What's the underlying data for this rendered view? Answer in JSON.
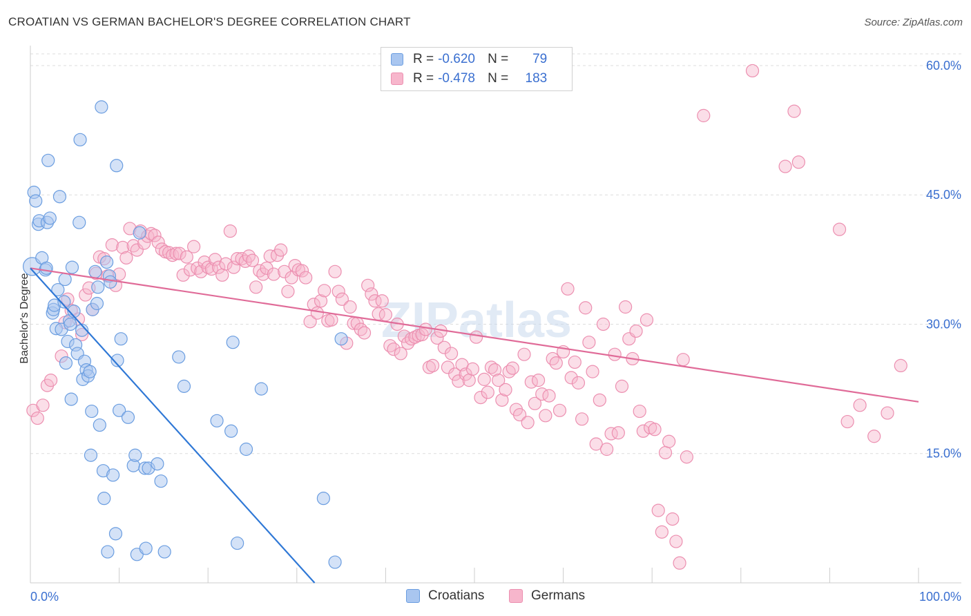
{
  "title": "CROATIAN VS GERMAN BACHELOR'S DEGREE CORRELATION CHART",
  "source": "Source: ZipAtlas.com",
  "watermark": "ZIPatlas",
  "legend": {
    "rows": [
      {
        "r_label": "R =",
        "r_value": "-0.620",
        "n_label": "N =",
        "n_value": "79"
      },
      {
        "r_label": "R =",
        "r_value": "-0.478",
        "n_label": "N =",
        "n_value": "183"
      }
    ]
  },
  "chart_data": {
    "type": "scatter",
    "title": "CROATIAN VS GERMAN BACHELOR'S DEGREE CORRELATION CHART",
    "xlabel": "",
    "ylabel": "Bachelor's Degree",
    "xlim": [
      0,
      100
    ],
    "ylim": [
      0,
      62
    ],
    "x_tick_labels": [
      "0.0%",
      "100.0%"
    ],
    "y_ticks": [
      15,
      30,
      45,
      60
    ],
    "y_tick_labels": [
      "15.0%",
      "30.0%",
      "45.0%",
      "60.0%"
    ],
    "grid": true,
    "colors": {
      "croatians_fill": "#a9c6f0",
      "croatians_stroke": "#6a9de0",
      "croatians_line": "#2f78d6",
      "germans_fill": "#f7b6cc",
      "germans_stroke": "#ec8fb0",
      "germans_line": "#e06b98"
    },
    "series": [
      {
        "name": "Croatians",
        "r": -0.62,
        "n": 79,
        "trend": {
          "x": [
            0,
            32
          ],
          "y": [
            36.5,
            0
          ]
        },
        "points": [
          [
            0.2,
            36.7
          ],
          [
            0.4,
            45.3
          ],
          [
            0.6,
            44.3
          ],
          [
            0.9,
            41.6
          ],
          [
            1.0,
            42.0
          ],
          [
            1.3,
            37.7
          ],
          [
            1.7,
            36.3
          ],
          [
            1.8,
            36.5
          ],
          [
            1.9,
            41.8
          ],
          [
            2.0,
            49.0
          ],
          [
            2.2,
            42.3
          ],
          [
            2.5,
            31.3
          ],
          [
            2.6,
            31.7
          ],
          [
            2.7,
            32.2
          ],
          [
            2.9,
            29.5
          ],
          [
            3.1,
            34.0
          ],
          [
            3.3,
            44.8
          ],
          [
            3.5,
            29.4
          ],
          [
            3.8,
            32.6
          ],
          [
            3.9,
            35.2
          ],
          [
            4.0,
            25.5
          ],
          [
            4.2,
            28.0
          ],
          [
            4.4,
            30.4
          ],
          [
            4.5,
            30.0
          ],
          [
            4.6,
            21.3
          ],
          [
            4.7,
            36.6
          ],
          [
            4.9,
            31.5
          ],
          [
            5.1,
            27.6
          ],
          [
            5.3,
            26.6
          ],
          [
            5.5,
            41.8
          ],
          [
            5.6,
            51.4
          ],
          [
            5.8,
            29.3
          ],
          [
            5.9,
            23.6
          ],
          [
            6.1,
            25.7
          ],
          [
            6.3,
            24.7
          ],
          [
            6.5,
            24.0
          ],
          [
            6.7,
            24.5
          ],
          [
            6.8,
            14.8
          ],
          [
            6.9,
            19.9
          ],
          [
            7.0,
            31.7
          ],
          [
            7.3,
            36.1
          ],
          [
            7.5,
            32.4
          ],
          [
            7.6,
            34.3
          ],
          [
            7.8,
            18.3
          ],
          [
            8.0,
            55.2
          ],
          [
            8.2,
            13.0
          ],
          [
            8.3,
            9.8
          ],
          [
            8.6,
            37.2
          ],
          [
            8.7,
            3.6
          ],
          [
            8.9,
            35.6
          ],
          [
            9.0,
            34.9
          ],
          [
            9.3,
            12.5
          ],
          [
            9.6,
            5.7
          ],
          [
            9.7,
            48.4
          ],
          [
            9.8,
            25.8
          ],
          [
            10.0,
            20.0
          ],
          [
            10.2,
            28.3
          ],
          [
            11.0,
            19.2
          ],
          [
            11.6,
            13.6
          ],
          [
            11.8,
            14.8
          ],
          [
            12.0,
            3.3
          ],
          [
            12.3,
            40.6
          ],
          [
            12.9,
            13.3
          ],
          [
            13.0,
            4.0
          ],
          [
            13.3,
            13.3
          ],
          [
            14.3,
            13.8
          ],
          [
            14.7,
            11.8
          ],
          [
            15.1,
            3.6
          ],
          [
            16.7,
            26.2
          ],
          [
            17.3,
            22.8
          ],
          [
            22.6,
            17.6
          ],
          [
            22.8,
            27.9
          ],
          [
            23.3,
            4.6
          ],
          [
            24.3,
            15.5
          ],
          [
            33.0,
            9.8
          ],
          [
            34.3,
            2.4
          ],
          [
            35.0,
            28.3
          ],
          [
            26.0,
            22.5
          ],
          [
            21.0,
            18.8
          ]
        ]
      },
      {
        "name": "Germans",
        "r": -0.478,
        "n": 183,
        "trend": {
          "x": [
            0,
            100
          ],
          "y": [
            36.5,
            21.0
          ]
        },
        "points": [
          [
            0.3,
            20.0
          ],
          [
            0.8,
            19.1
          ],
          [
            1.4,
            20.6
          ],
          [
            1.9,
            22.9
          ],
          [
            2.3,
            23.5
          ],
          [
            3.5,
            26.3
          ],
          [
            3.9,
            30.2
          ],
          [
            4.2,
            32.9
          ],
          [
            4.6,
            31.6
          ],
          [
            5.4,
            30.6
          ],
          [
            5.8,
            28.8
          ],
          [
            6.2,
            33.4
          ],
          [
            6.6,
            34.2
          ],
          [
            7.0,
            31.7
          ],
          [
            7.4,
            35.9
          ],
          [
            7.8,
            37.8
          ],
          [
            8.3,
            37.6
          ],
          [
            8.7,
            35.6
          ],
          [
            9.2,
            39.2
          ],
          [
            9.6,
            34.5
          ],
          [
            10.0,
            35.8
          ],
          [
            10.4,
            38.9
          ],
          [
            10.8,
            37.7
          ],
          [
            11.2,
            41.1
          ],
          [
            11.6,
            39.1
          ],
          [
            12.0,
            38.6
          ],
          [
            12.4,
            40.8
          ],
          [
            12.8,
            39.4
          ],
          [
            13.2,
            40.2
          ],
          [
            13.6,
            40.5
          ],
          [
            14.0,
            40.3
          ],
          [
            14.4,
            39.5
          ],
          [
            14.8,
            38.7
          ],
          [
            15.2,
            38.4
          ],
          [
            15.6,
            38.3
          ],
          [
            16.0,
            38.0
          ],
          [
            16.4,
            38.2
          ],
          [
            16.8,
            38.2
          ],
          [
            17.2,
            35.7
          ],
          [
            17.6,
            37.8
          ],
          [
            18.0,
            36.3
          ],
          [
            18.4,
            39.0
          ],
          [
            18.8,
            36.5
          ],
          [
            19.2,
            36.1
          ],
          [
            19.6,
            37.2
          ],
          [
            20.0,
            36.6
          ],
          [
            20.4,
            36.4
          ],
          [
            20.8,
            37.5
          ],
          [
            21.2,
            36.6
          ],
          [
            21.6,
            35.7
          ],
          [
            22.0,
            37.0
          ],
          [
            22.5,
            40.8
          ],
          [
            22.9,
            36.6
          ],
          [
            23.3,
            37.6
          ],
          [
            23.8,
            37.6
          ],
          [
            24.2,
            37.3
          ],
          [
            24.6,
            37.9
          ],
          [
            25.0,
            37.4
          ],
          [
            25.4,
            34.3
          ],
          [
            25.8,
            36.2
          ],
          [
            26.2,
            35.8
          ],
          [
            26.6,
            36.5
          ],
          [
            27.0,
            37.9
          ],
          [
            27.4,
            35.8
          ],
          [
            27.8,
            38.0
          ],
          [
            28.2,
            38.6
          ],
          [
            28.6,
            36.1
          ],
          [
            29.0,
            33.8
          ],
          [
            29.4,
            35.4
          ],
          [
            29.8,
            36.8
          ],
          [
            30.2,
            36.3
          ],
          [
            30.6,
            36.2
          ],
          [
            31.0,
            35.4
          ],
          [
            31.5,
            30.3
          ],
          [
            31.9,
            32.3
          ],
          [
            32.3,
            31.3
          ],
          [
            32.7,
            32.7
          ],
          [
            33.1,
            33.9
          ],
          [
            33.5,
            30.4
          ],
          [
            33.9,
            30.5
          ],
          [
            34.3,
            36.1
          ],
          [
            34.7,
            33.8
          ],
          [
            35.1,
            32.9
          ],
          [
            35.6,
            27.8
          ],
          [
            36.0,
            32.0
          ],
          [
            36.4,
            30.1
          ],
          [
            36.8,
            30.1
          ],
          [
            37.2,
            29.4
          ],
          [
            37.6,
            29.0
          ],
          [
            38.0,
            34.5
          ],
          [
            38.4,
            33.5
          ],
          [
            38.8,
            32.7
          ],
          [
            39.2,
            31.2
          ],
          [
            39.6,
            32.7
          ],
          [
            40.0,
            31.1
          ],
          [
            40.5,
            27.5
          ],
          [
            40.9,
            27.1
          ],
          [
            41.3,
            30.0
          ],
          [
            41.7,
            26.6
          ],
          [
            42.1,
            28.6
          ],
          [
            42.5,
            27.8
          ],
          [
            42.9,
            28.3
          ],
          [
            43.3,
            28.5
          ],
          [
            43.7,
            28.7
          ],
          [
            44.1,
            28.8
          ],
          [
            44.5,
            29.4
          ],
          [
            44.9,
            25.0
          ],
          [
            45.3,
            25.2
          ],
          [
            45.8,
            28.4
          ],
          [
            46.2,
            29.2
          ],
          [
            46.6,
            27.3
          ],
          [
            47.0,
            25.0
          ],
          [
            47.4,
            26.6
          ],
          [
            47.8,
            24.2
          ],
          [
            48.2,
            23.4
          ],
          [
            48.6,
            25.3
          ],
          [
            49.0,
            24.2
          ],
          [
            49.4,
            23.5
          ],
          [
            49.8,
            24.8
          ],
          [
            50.2,
            28.5
          ],
          [
            50.7,
            21.5
          ],
          [
            51.1,
            23.6
          ],
          [
            51.5,
            22.1
          ],
          [
            51.9,
            25.0
          ],
          [
            52.3,
            24.7
          ],
          [
            52.7,
            23.5
          ],
          [
            53.1,
            21.2
          ],
          [
            53.5,
            22.4
          ],
          [
            53.9,
            24.5
          ],
          [
            54.3,
            24.9
          ],
          [
            54.7,
            20.1
          ],
          [
            55.1,
            19.5
          ],
          [
            55.6,
            26.5
          ],
          [
            56.0,
            18.6
          ],
          [
            56.4,
            23.3
          ],
          [
            56.8,
            20.8
          ],
          [
            57.2,
            23.5
          ],
          [
            57.6,
            21.9
          ],
          [
            58.0,
            19.4
          ],
          [
            58.4,
            21.7
          ],
          [
            58.8,
            26.0
          ],
          [
            59.2,
            25.5
          ],
          [
            59.6,
            20.0
          ],
          [
            60.0,
            26.8
          ],
          [
            60.5,
            34.1
          ],
          [
            60.9,
            23.8
          ],
          [
            61.3,
            25.6
          ],
          [
            61.7,
            23.2
          ],
          [
            62.1,
            19.0
          ],
          [
            62.5,
            31.9
          ],
          [
            62.9,
            27.9
          ],
          [
            63.3,
            24.5
          ],
          [
            63.7,
            16.1
          ],
          [
            64.1,
            21.2
          ],
          [
            64.5,
            30.0
          ],
          [
            64.9,
            15.5
          ],
          [
            65.4,
            17.3
          ],
          [
            65.8,
            26.5
          ],
          [
            66.2,
            17.4
          ],
          [
            66.6,
            22.8
          ],
          [
            67.0,
            32.0
          ],
          [
            67.4,
            28.3
          ],
          [
            67.8,
            26.0
          ],
          [
            68.2,
            29.2
          ],
          [
            68.6,
            19.9
          ],
          [
            69.0,
            17.6
          ],
          [
            69.4,
            30.5
          ],
          [
            69.8,
            18.0
          ],
          [
            70.3,
            17.8
          ],
          [
            70.7,
            8.4
          ],
          [
            71.1,
            5.9
          ],
          [
            71.5,
            15.1
          ],
          [
            71.9,
            16.4
          ],
          [
            72.3,
            7.4
          ],
          [
            72.7,
            4.8
          ],
          [
            73.1,
            2.3
          ],
          [
            73.5,
            25.9
          ],
          [
            73.9,
            14.6
          ],
          [
            75.8,
            54.2
          ],
          [
            81.3,
            59.4
          ],
          [
            85.0,
            48.3
          ],
          [
            86.0,
            54.7
          ],
          [
            86.5,
            48.8
          ],
          [
            91.1,
            41.0
          ],
          [
            92.0,
            18.7
          ],
          [
            93.4,
            20.6
          ],
          [
            95.0,
            17.0
          ],
          [
            96.5,
            19.7
          ],
          [
            98.0,
            25.2
          ]
        ]
      }
    ]
  }
}
